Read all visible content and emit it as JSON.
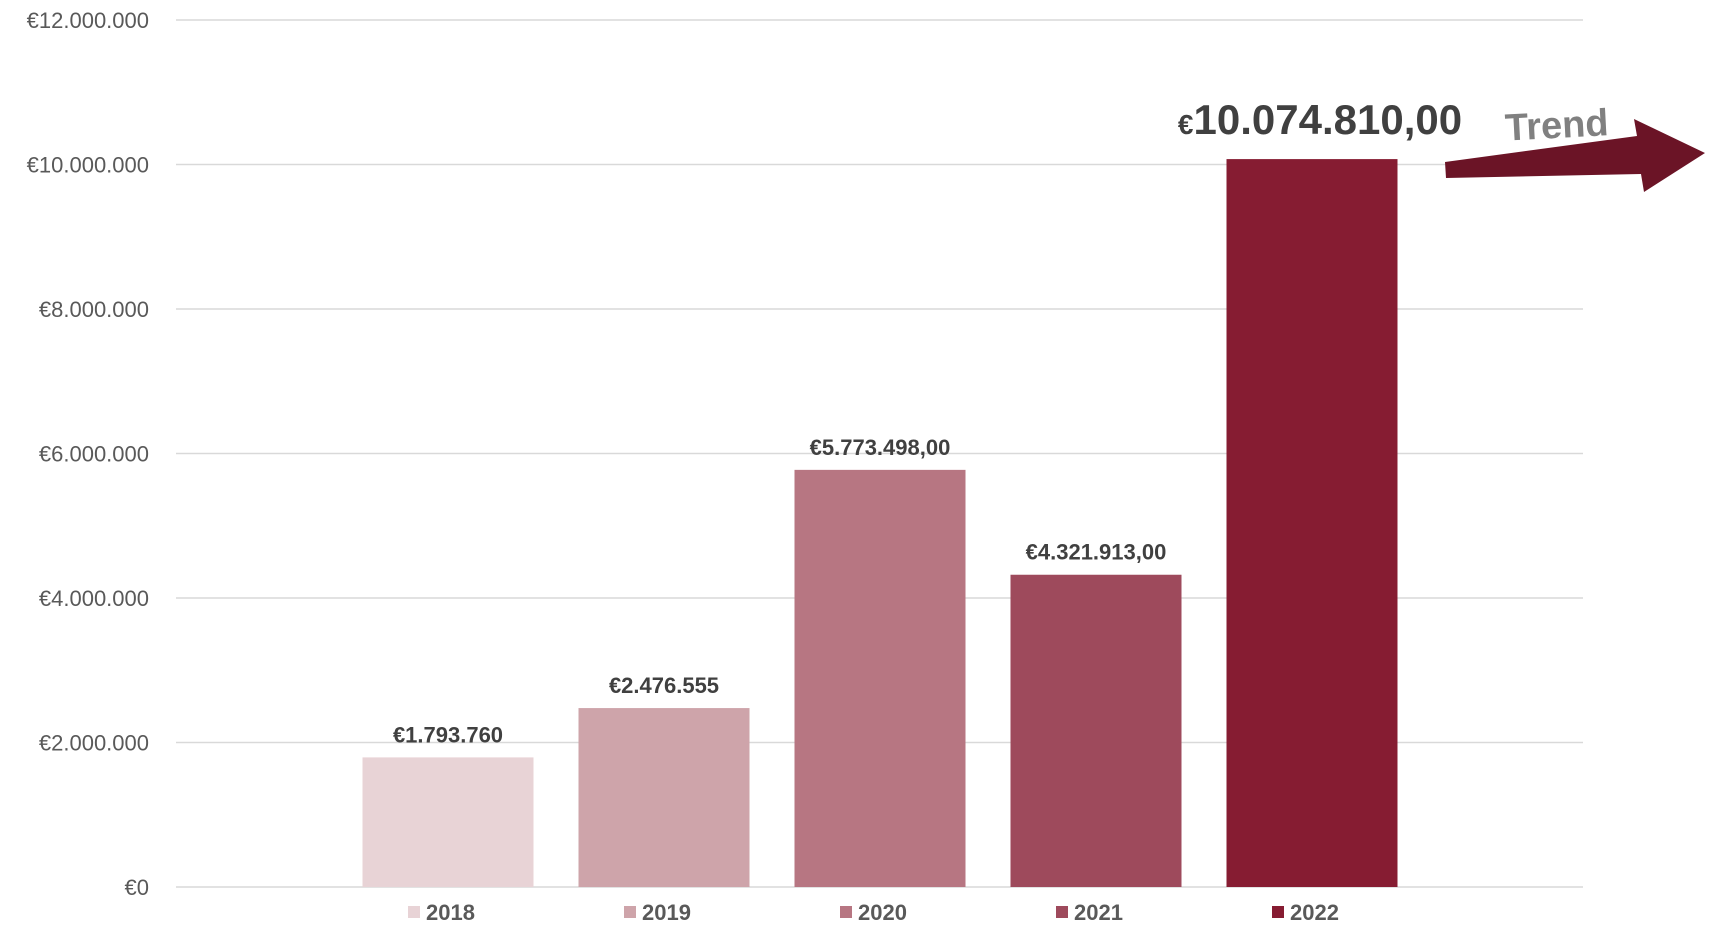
{
  "chart_data": {
    "type": "bar",
    "categories": [
      "2018",
      "2019",
      "2020",
      "2021",
      "2022"
    ],
    "values": [
      1793760,
      2476555,
      5773498,
      4321913,
      10074810
    ],
    "data_labels": [
      "€1.793.760",
      "€2.476.555",
      "€5.773.498,00",
      "€4.321.913,00",
      "€10.074.810,00"
    ],
    "colors": [
      "#e8d3d6",
      "#cea4aa",
      "#b77682",
      "#9e4a5c",
      "#861c32"
    ],
    "y_ticks": [
      0,
      2000000,
      4000000,
      6000000,
      8000000,
      10000000,
      12000000
    ],
    "y_tick_labels": [
      "€0",
      "€2.000.000",
      "€4.000.000",
      "€6.000.000",
      "€8.000.000",
      "€10.000.000",
      "€12.000.000"
    ],
    "ylim": [
      0,
      12000000
    ],
    "grid": true,
    "legend": "bottom",
    "annotation": {
      "text": "Trend",
      "arrow_color": "#6b1426"
    }
  }
}
